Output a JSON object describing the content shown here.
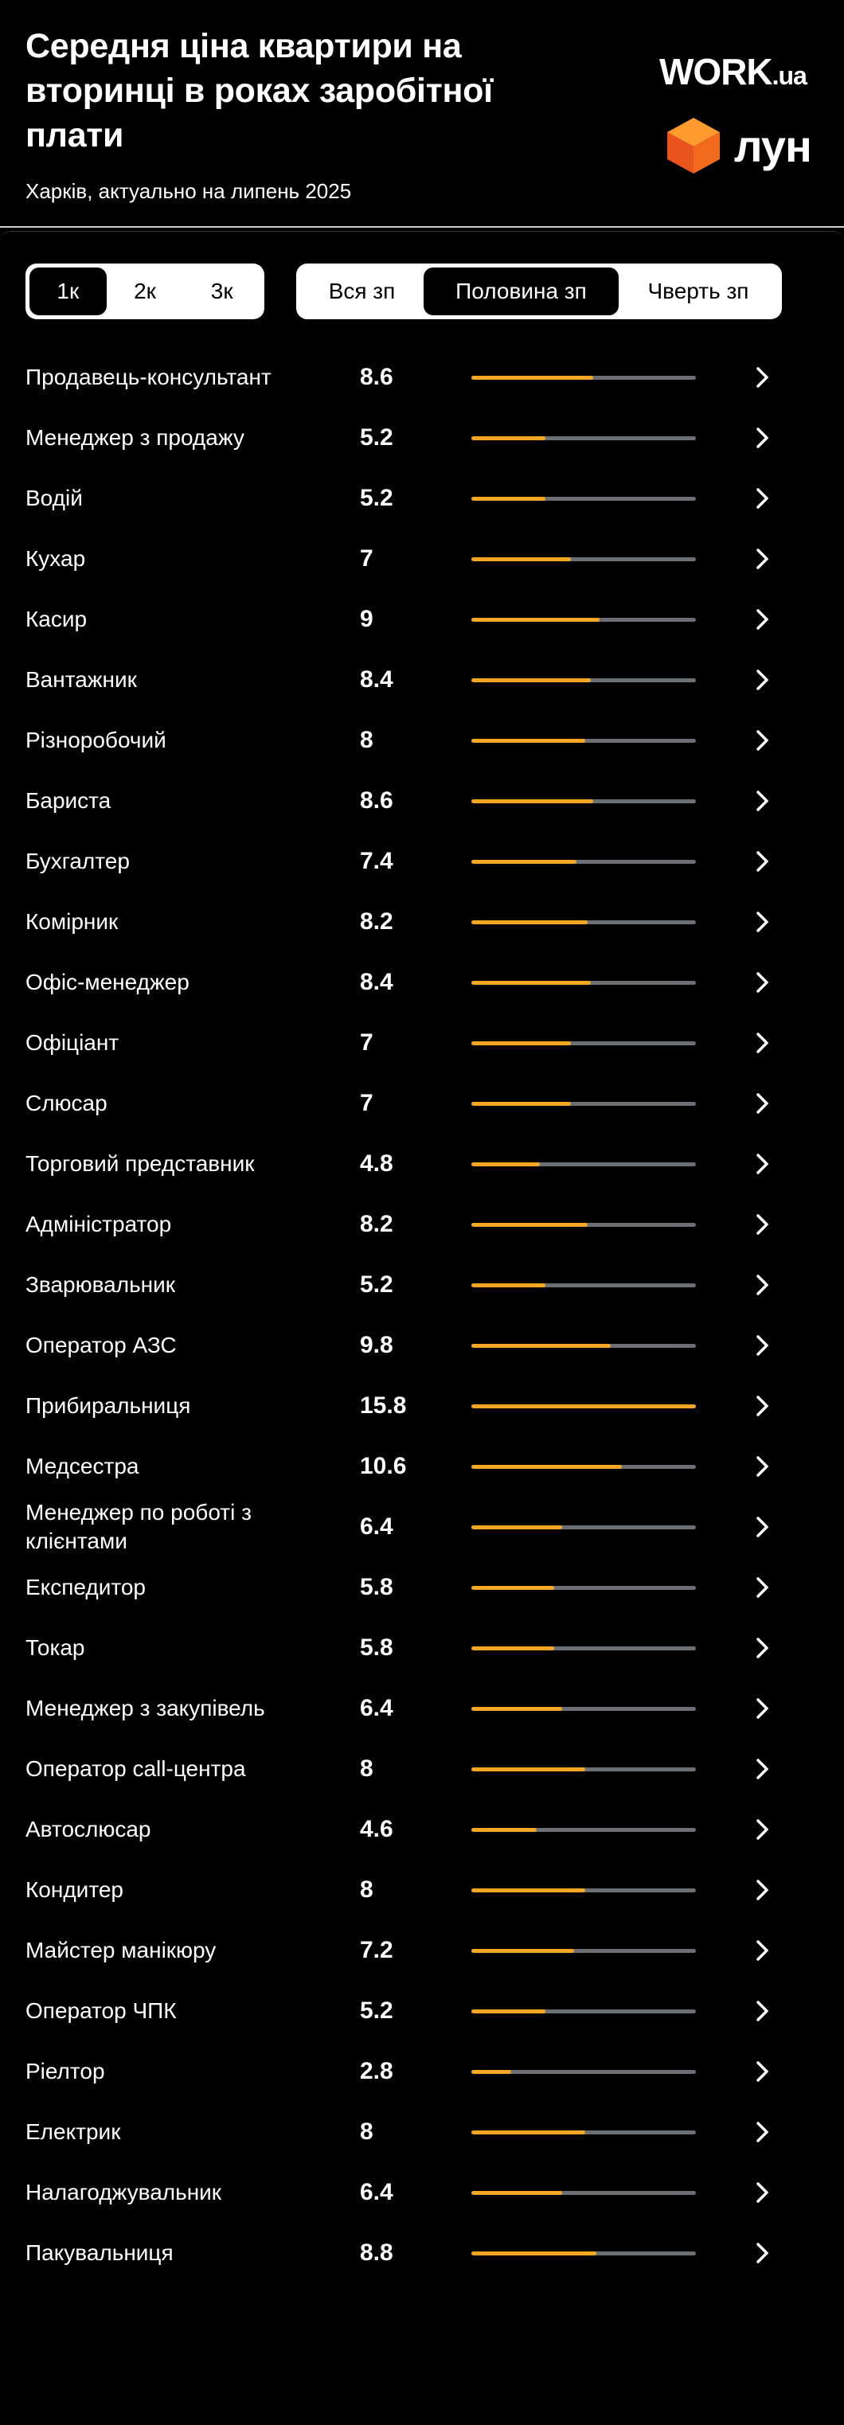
{
  "header": {
    "title": "Середня ціна квартири на вторинці в роках заробітної плати",
    "subtitle": "Харків, актуально на липень 2025",
    "logo_work": "WORK",
    "logo_work_suffix": ".ua",
    "logo_lun": "лун",
    "accent_color": "#f5a623"
  },
  "room_selector": {
    "options": [
      "1к",
      "2к",
      "3к"
    ],
    "selected": "1к"
  },
  "salary_selector": {
    "options": [
      "Вся зп",
      "Половина зп",
      "Чверть зп"
    ],
    "selected": "Половина зп"
  },
  "scale_max": 15.8,
  "rows": [
    {
      "name": "Продавець-консультант",
      "value": "8.6"
    },
    {
      "name": "Менеджер з продажу",
      "value": "5.2"
    },
    {
      "name": "Водій",
      "value": "5.2"
    },
    {
      "name": "Кухар",
      "value": "7"
    },
    {
      "name": "Касир",
      "value": "9"
    },
    {
      "name": "Вантажник",
      "value": "8.4"
    },
    {
      "name": "Різноробочий",
      "value": "8"
    },
    {
      "name": "Бариста",
      "value": "8.6"
    },
    {
      "name": "Бухгалтер",
      "value": "7.4"
    },
    {
      "name": "Комірник",
      "value": "8.2"
    },
    {
      "name": "Офіс-менеджер",
      "value": "8.4"
    },
    {
      "name": "Офіціант",
      "value": "7"
    },
    {
      "name": "Слюсар",
      "value": "7"
    },
    {
      "name": "Торговий представник",
      "value": "4.8"
    },
    {
      "name": "Адміністратор",
      "value": "8.2"
    },
    {
      "name": "Зварювальник",
      "value": "5.2"
    },
    {
      "name": "Оператор АЗС",
      "value": "9.8"
    },
    {
      "name": "Прибиральниця",
      "value": "15.8"
    },
    {
      "name": "Медсестра",
      "value": "10.6"
    },
    {
      "name": "Менеджер по роботі з клієнтами",
      "value": "6.4"
    },
    {
      "name": "Експедитор",
      "value": "5.8"
    },
    {
      "name": "Токар",
      "value": "5.8"
    },
    {
      "name": "Менеджер з закупівель",
      "value": "6.4"
    },
    {
      "name": "Оператор call-центра",
      "value": "8"
    },
    {
      "name": "Автослюсар",
      "value": "4.6"
    },
    {
      "name": "Кондитер",
      "value": "8"
    },
    {
      "name": "Майстер манікюру",
      "value": "7.2"
    },
    {
      "name": "Оператор ЧПК",
      "value": "5.2"
    },
    {
      "name": "Ріелтор",
      "value": "2.8"
    },
    {
      "name": "Електрик",
      "value": "8"
    },
    {
      "name": "Налагоджувальник",
      "value": "6.4"
    },
    {
      "name": "Пакувальниця",
      "value": "8.8"
    }
  ]
}
